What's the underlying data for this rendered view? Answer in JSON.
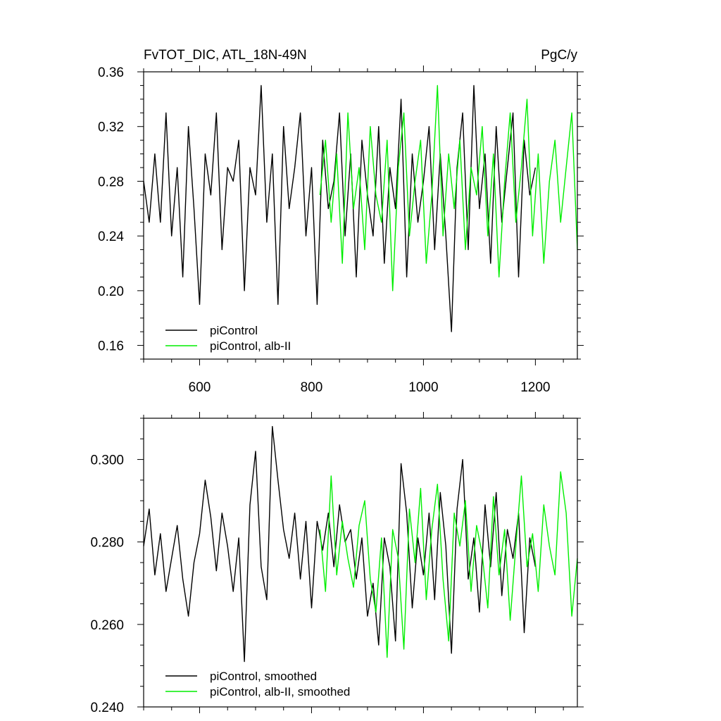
{
  "header": {
    "title_left": "FvTOT_DIC, ATL_18N-49N",
    "title_right": "PgC/y"
  },
  "colors": {
    "picontrol": "#000000",
    "alb2": "#00ee00",
    "frame": "#000000",
    "background": "#ffffff"
  },
  "chart_data": [
    {
      "type": "line",
      "title": "FvTOT_DIC, ATL_18N-49N",
      "units": "PgC/y",
      "xlim": [
        500,
        1275
      ],
      "ylim": [
        0.15,
        0.36
      ],
      "x_ticks": [
        600,
        800,
        1000,
        1200
      ],
      "x_tick_labels": [
        "600",
        "800",
        "1000",
        "1200"
      ],
      "y_ticks": [
        0.16,
        0.2,
        0.24,
        0.28,
        0.32,
        0.36
      ],
      "y_tick_labels": [
        "0.16",
        "0.20",
        "0.24",
        "0.28",
        "0.32",
        "0.36"
      ],
      "legend_position": "bottom-left",
      "grid": false,
      "series": [
        {
          "name": "piControl",
          "color": "#000000",
          "x": [
            500,
            510,
            520,
            530,
            540,
            550,
            560,
            570,
            580,
            590,
            600,
            610,
            620,
            630,
            640,
            650,
            660,
            670,
            680,
            690,
            700,
            710,
            720,
            730,
            740,
            750,
            760,
            770,
            780,
            790,
            800,
            810,
            820,
            830,
            840,
            850,
            860,
            870,
            880,
            890,
            900,
            910,
            920,
            930,
            940,
            950,
            960,
            970,
            980,
            990,
            1000,
            1010,
            1020,
            1030,
            1040,
            1050,
            1060,
            1070,
            1080,
            1090,
            1100,
            1110,
            1120,
            1130,
            1140,
            1150,
            1160,
            1170,
            1180,
            1190,
            1200
          ],
          "y": [
            0.28,
            0.25,
            0.3,
            0.25,
            0.33,
            0.24,
            0.29,
            0.21,
            0.32,
            0.26,
            0.19,
            0.3,
            0.27,
            0.33,
            0.23,
            0.29,
            0.28,
            0.31,
            0.2,
            0.29,
            0.27,
            0.35,
            0.25,
            0.3,
            0.19,
            0.32,
            0.26,
            0.29,
            0.33,
            0.24,
            0.29,
            0.19,
            0.31,
            0.26,
            0.28,
            0.33,
            0.24,
            0.3,
            0.21,
            0.31,
            0.27,
            0.24,
            0.32,
            0.22,
            0.29,
            0.26,
            0.34,
            0.21,
            0.3,
            0.25,
            0.28,
            0.32,
            0.23,
            0.3,
            0.24,
            0.17,
            0.29,
            0.33,
            0.23,
            0.35,
            0.26,
            0.3,
            0.22,
            0.32,
            0.25,
            0.29,
            0.33,
            0.21,
            0.31,
            0.27,
            0.29
          ]
        },
        {
          "name": "piControl, alb-II",
          "color": "#00ee00",
          "x": [
            815,
            825,
            835,
            845,
            855,
            865,
            875,
            885,
            895,
            905,
            915,
            925,
            935,
            945,
            955,
            965,
            975,
            985,
            995,
            1005,
            1015,
            1025,
            1035,
            1045,
            1055,
            1065,
            1075,
            1085,
            1095,
            1105,
            1115,
            1125,
            1135,
            1145,
            1155,
            1165,
            1175,
            1185,
            1195,
            1205,
            1215,
            1225,
            1235,
            1245,
            1255,
            1265,
            1275
          ],
          "y": [
            0.27,
            0.31,
            0.25,
            0.3,
            0.22,
            0.33,
            0.26,
            0.29,
            0.23,
            0.32,
            0.27,
            0.25,
            0.31,
            0.2,
            0.29,
            0.33,
            0.24,
            0.28,
            0.31,
            0.22,
            0.27,
            0.35,
            0.24,
            0.3,
            0.26,
            0.31,
            0.23,
            0.29,
            0.27,
            0.32,
            0.24,
            0.3,
            0.21,
            0.28,
            0.33,
            0.25,
            0.29,
            0.34,
            0.24,
            0.3,
            0.22,
            0.28,
            0.31,
            0.25,
            0.29,
            0.33,
            0.23
          ]
        }
      ]
    },
    {
      "type": "line",
      "xlim": [
        500,
        1275
      ],
      "ylim": [
        0.24,
        0.31
      ],
      "x_ticks": [
        600,
        800,
        1000,
        1200
      ],
      "y_ticks": [
        0.24,
        0.26,
        0.28,
        0.3
      ],
      "y_tick_labels": [
        "0.240",
        "0.260",
        "0.280",
        "0.300"
      ],
      "legend_position": "bottom-left",
      "grid": false,
      "series": [
        {
          "name": "piControl, smoothed",
          "color": "#000000",
          "x": [
            500,
            510,
            520,
            530,
            540,
            550,
            560,
            570,
            580,
            590,
            600,
            610,
            620,
            630,
            640,
            650,
            660,
            670,
            680,
            690,
            700,
            710,
            720,
            730,
            740,
            750,
            760,
            770,
            780,
            790,
            800,
            810,
            820,
            830,
            840,
            850,
            860,
            870,
            880,
            890,
            900,
            910,
            920,
            930,
            940,
            950,
            960,
            970,
            980,
            990,
            1000,
            1010,
            1020,
            1030,
            1040,
            1050,
            1060,
            1070,
            1080,
            1090,
            1100,
            1110,
            1120,
            1130,
            1140,
            1150,
            1160,
            1170,
            1180,
            1190,
            1200
          ],
          "y": [
            0.279,
            0.288,
            0.272,
            0.282,
            0.268,
            0.276,
            0.284,
            0.271,
            0.262,
            0.275,
            0.282,
            0.295,
            0.286,
            0.273,
            0.287,
            0.279,
            0.268,
            0.281,
            0.251,
            0.289,
            0.302,
            0.274,
            0.266,
            0.308,
            0.295,
            0.283,
            0.276,
            0.287,
            0.271,
            0.285,
            0.264,
            0.285,
            0.278,
            0.287,
            0.274,
            0.289,
            0.28,
            0.283,
            0.271,
            0.281,
            0.262,
            0.27,
            0.255,
            0.281,
            0.274,
            0.256,
            0.299,
            0.287,
            0.264,
            0.281,
            0.272,
            0.287,
            0.266,
            0.292,
            0.279,
            0.253,
            0.288,
            0.3,
            0.271,
            0.281,
            0.263,
            0.289,
            0.274,
            0.292,
            0.267,
            0.283,
            0.276,
            0.287,
            0.258,
            0.281,
            0.274
          ]
        },
        {
          "name": "piControl, alb-II, smoothed",
          "color": "#00ee00",
          "x": [
            815,
            825,
            835,
            845,
            855,
            865,
            875,
            885,
            895,
            905,
            915,
            925,
            935,
            945,
            955,
            965,
            975,
            985,
            995,
            1005,
            1015,
            1025,
            1035,
            1045,
            1055,
            1065,
            1075,
            1085,
            1095,
            1105,
            1115,
            1125,
            1135,
            1145,
            1155,
            1165,
            1175,
            1185,
            1195,
            1205,
            1215,
            1225,
            1235,
            1245,
            1255,
            1265,
            1275
          ],
          "y": [
            0.283,
            0.268,
            0.296,
            0.272,
            0.285,
            0.276,
            0.269,
            0.284,
            0.29,
            0.271,
            0.263,
            0.281,
            0.252,
            0.283,
            0.276,
            0.254,
            0.288,
            0.275,
            0.293,
            0.266,
            0.283,
            0.294,
            0.271,
            0.256,
            0.287,
            0.279,
            0.29,
            0.268,
            0.284,
            0.277,
            0.264,
            0.291,
            0.272,
            0.283,
            0.261,
            0.279,
            0.296,
            0.274,
            0.282,
            0.268,
            0.289,
            0.279,
            0.272,
            0.297,
            0.287,
            0.262,
            0.276
          ]
        }
      ]
    }
  ]
}
